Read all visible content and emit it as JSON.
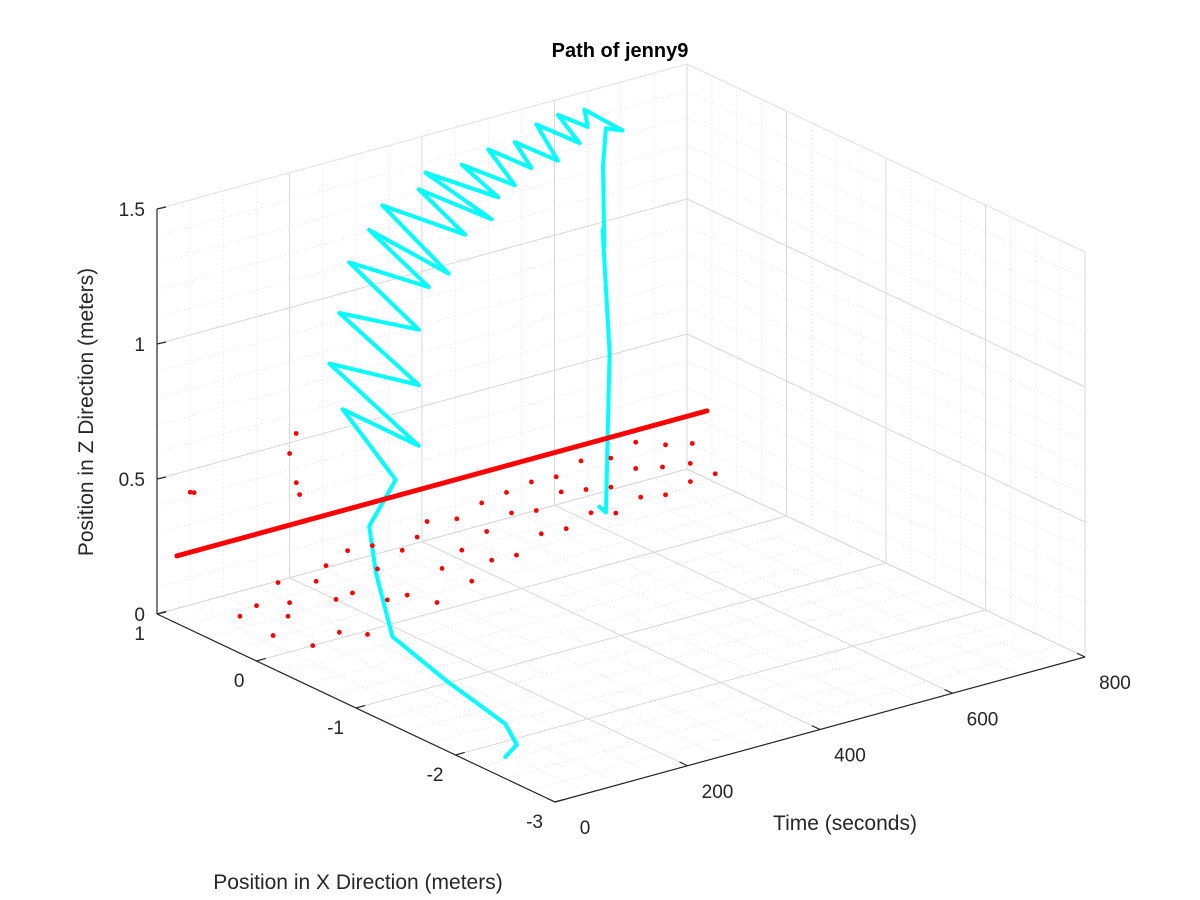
{
  "chart_data": {
    "type": "line3d",
    "title": "Path of jenny9",
    "xlabel": "Time (seconds)",
    "ylabel": "Position in X Direction (meters)",
    "zlabel": "Position in Z Direction (meters)",
    "xlim": [
      0,
      800
    ],
    "ylim": [
      -3,
      1
    ],
    "zlim": [
      0,
      1.5
    ],
    "x_ticks": [
      "0",
      "200",
      "400",
      "600",
      "800"
    ],
    "y_ticks": [
      "-3",
      "-2",
      "-1",
      "0",
      "1"
    ],
    "z_ticks": [
      "0",
      "0.5",
      "1",
      "1.5"
    ],
    "grid": true,
    "minor_grid": true,
    "view": {
      "azimuth": -37.5,
      "elevation": 30
    },
    "series": [
      {
        "color": "#00FFFF",
        "style": "line",
        "points": [
          [
            0,
            -2.5,
            0.08
          ],
          [
            25,
            -2.45,
            0.1
          ],
          [
            45,
            -2.2,
            0.12
          ],
          [
            60,
            -1.5,
            0.15
          ],
          [
            70,
            -0.9,
            0.2
          ],
          [
            75,
            -0.7,
            0.4
          ],
          [
            80,
            -0.6,
            0.55
          ],
          [
            90,
            -0.8,
            0.75
          ],
          [
            100,
            -0.2,
            0.9
          ],
          [
            110,
            -0.9,
            0.88
          ],
          [
            125,
            0.1,
            1.0
          ],
          [
            140,
            -0.7,
            1.05
          ],
          [
            155,
            0.2,
            1.15
          ],
          [
            170,
            -0.5,
            1.2
          ],
          [
            185,
            0.3,
            1.3
          ],
          [
            200,
            -0.4,
            1.32
          ],
          [
            215,
            0.3,
            1.4
          ],
          [
            230,
            -0.4,
            1.35
          ],
          [
            250,
            0.4,
            1.45
          ],
          [
            270,
            -0.3,
            1.45
          ],
          [
            290,
            0.3,
            1.5
          ],
          [
            310,
            -0.3,
            1.48
          ],
          [
            330,
            0.5,
            1.5
          ],
          [
            350,
            -0.1,
            1.5
          ],
          [
            370,
            0.4,
            1.52
          ],
          [
            390,
            0.0,
            1.5
          ],
          [
            410,
            0.4,
            1.55
          ],
          [
            430,
            0.1,
            1.52
          ],
          [
            450,
            0.4,
            1.55
          ],
          [
            470,
            0.1,
            1.52
          ],
          [
            490,
            0.45,
            1.58
          ],
          [
            510,
            0.15,
            1.55
          ],
          [
            530,
            0.5,
            1.58
          ],
          [
            545,
            0.3,
            1.56
          ],
          [
            555,
            0.4,
            1.6
          ],
          [
            560,
            0.05,
            1.58
          ],
          [
            565,
            0.25,
            1.55
          ],
          [
            568,
            0.3,
            1.4
          ],
          [
            570,
            0.3,
            1.1
          ],
          [
            575,
            0.35,
            1.15
          ],
          [
            578,
            0.3,
            0.7
          ],
          [
            580,
            0.35,
            0.1
          ],
          [
            585,
            0.45,
            0.1
          ]
        ]
      },
      {
        "color": "#FF0000",
        "style": "line",
        "points": [
          [
            0,
            0.8,
            0.25
          ],
          [
            800,
            0.8,
            0.25
          ]
        ]
      },
      {
        "color": "#FF0000",
        "style": "scatter",
        "points": [
          [
            5,
            0.7,
            0.5
          ],
          [
            8,
            0.68,
            0.5
          ],
          [
            50,
            -0.1,
            0.6
          ],
          [
            60,
            0.0,
            0.62
          ],
          [
            80,
            0.2,
            0.68
          ],
          [
            105,
            0.3,
            0.72
          ],
          [
            20,
            0.3,
            0.1
          ],
          [
            30,
            0.2,
            0.15
          ],
          [
            40,
            0.1,
            0.05
          ],
          [
            55,
            0.05,
            0.12
          ],
          [
            70,
            0.25,
            0.2
          ],
          [
            85,
            0.0,
            0.0
          ],
          [
            95,
            0.3,
            0.1
          ],
          [
            110,
            -0.1,
            0.05
          ],
          [
            120,
            0.2,
            0.18
          ],
          [
            135,
            0.1,
            0.12
          ],
          [
            150,
            0.3,
            0.2
          ],
          [
            160,
            -0.05,
            0.0
          ],
          [
            175,
            0.2,
            0.1
          ],
          [
            190,
            0.35,
            0.22
          ],
          [
            205,
            0.05,
            0.08
          ],
          [
            220,
            0.25,
            0.15
          ],
          [
            235,
            0.4,
            0.2
          ],
          [
            250,
            0.15,
            0.05
          ],
          [
            265,
            0.3,
            0.18
          ],
          [
            280,
            0.05,
            0.02
          ],
          [
            295,
            0.35,
            0.2
          ],
          [
            310,
            0.2,
            0.1
          ],
          [
            325,
            0.45,
            0.22
          ],
          [
            340,
            0.1,
            0.05
          ],
          [
            355,
            0.3,
            0.12
          ],
          [
            370,
            0.45,
            0.2
          ],
          [
            385,
            0.2,
            0.08
          ],
          [
            400,
            0.35,
            0.15
          ],
          [
            415,
            0.5,
            0.22
          ],
          [
            430,
            0.25,
            0.06
          ],
          [
            445,
            0.4,
            0.18
          ],
          [
            460,
            0.55,
            0.22
          ],
          [
            475,
            0.3,
            0.1
          ],
          [
            490,
            0.45,
            0.15
          ],
          [
            505,
            0.6,
            0.22
          ],
          [
            520,
            0.35,
            0.08
          ],
          [
            535,
            0.5,
            0.18
          ],
          [
            550,
            0.65,
            0.2
          ],
          [
            565,
            0.4,
            0.1
          ],
          [
            580,
            0.55,
            0.15
          ],
          [
            595,
            0.7,
            0.22
          ],
          [
            610,
            0.45,
            0.06
          ],
          [
            625,
            0.6,
            0.12
          ],
          [
            640,
            0.7,
            0.2
          ],
          [
            655,
            0.5,
            0.08
          ],
          [
            670,
            0.65,
            0.15
          ],
          [
            685,
            0.75,
            0.22
          ],
          [
            700,
            0.55,
            0.05
          ],
          [
            715,
            0.68,
            0.12
          ],
          [
            730,
            0.75,
            0.18
          ],
          [
            745,
            0.6,
            0.06
          ],
          [
            760,
            0.7,
            0.1
          ],
          [
            775,
            0.78,
            0.15
          ],
          [
            790,
            0.65,
            0.05
          ]
        ]
      }
    ]
  }
}
